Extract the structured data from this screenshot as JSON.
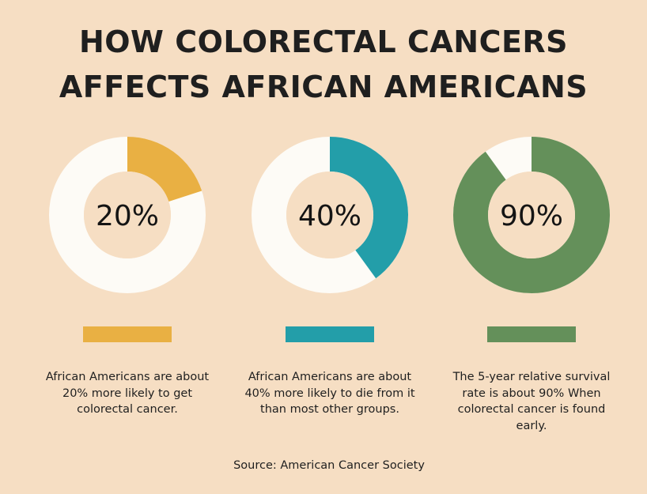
{
  "title": {
    "line1": "HOW COLORECTAL CANCERS",
    "line2": "AFFECTS AFRICAN AMERICANS"
  },
  "colors": {
    "background": "#f6dec3",
    "track": "#fdfbf6",
    "hole": "#f6dec3",
    "series": [
      "#e9b043",
      "#239ea9",
      "#64905a"
    ]
  },
  "chart_data": [
    {
      "type": "pie",
      "value_percent": 20,
      "center_label": "20%",
      "caption": "African Americans are about 20% more likely to get colorectal cancer."
    },
    {
      "type": "pie",
      "value_percent": 40,
      "center_label": "40%",
      "caption": "African Americans are about 40% more likely to die from it than most other groups."
    },
    {
      "type": "pie",
      "value_percent": 90,
      "center_label": "90%",
      "caption": "The 5-year relative survival rate is about 90% When colorectal cancer is found early."
    }
  ],
  "source": "Source: American Cancer Society"
}
